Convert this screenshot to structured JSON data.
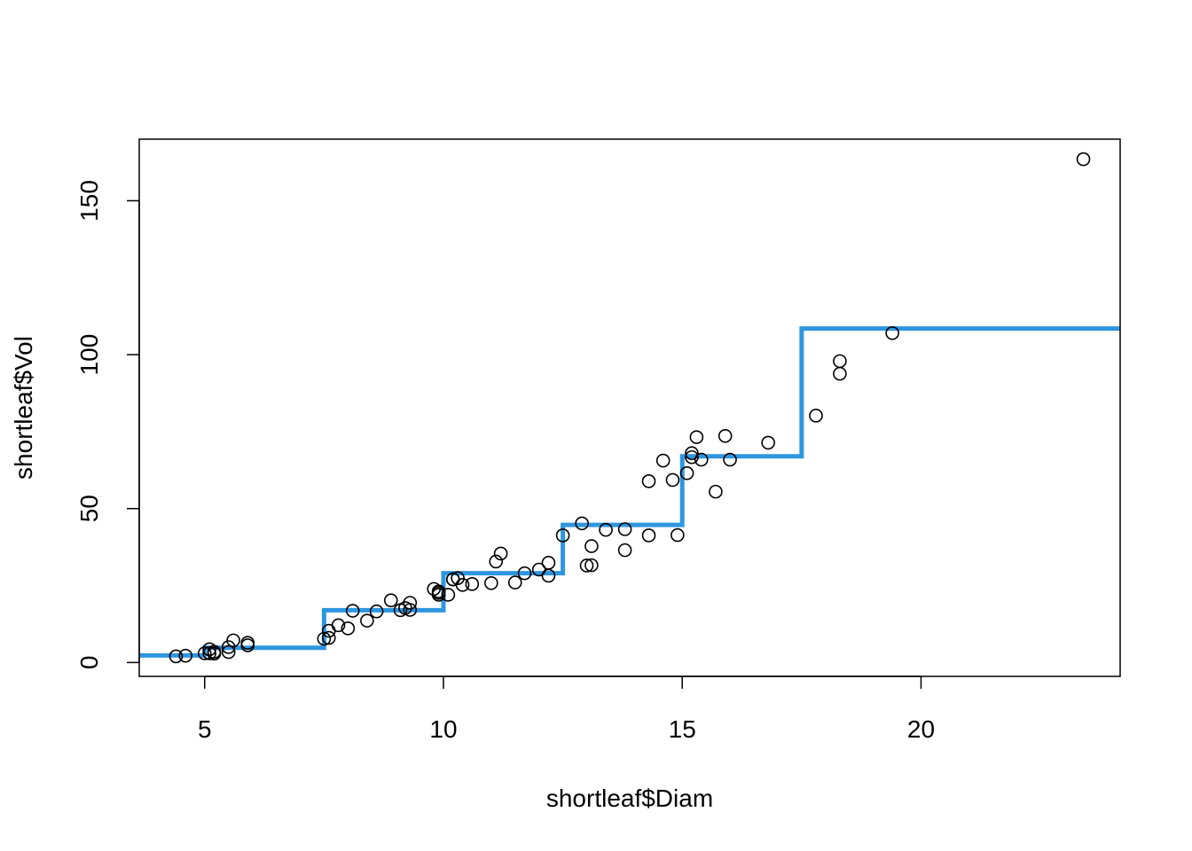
{
  "chart_data": {
    "type": "scatter",
    "title": "",
    "xlabel": "shortleaf$Diam",
    "ylabel": "shortleaf$Vol",
    "xlim": [
      3.63,
      24.17
    ],
    "ylim": [
      -4.5,
      170
    ],
    "x_ticks": [
      "5",
      "10",
      "15",
      "20"
    ],
    "y_ticks": [
      "0",
      "50",
      "100",
      "150"
    ],
    "grid": false,
    "legend": "none",
    "colors": {
      "points": "#000000",
      "step_line": "#2E96E0",
      "axes": "#000000"
    },
    "series": [
      {
        "type": "scatter",
        "points": [
          [
            4.4,
            2.0
          ],
          [
            4.6,
            2.2
          ],
          [
            5.0,
            3.0
          ],
          [
            5.1,
            4.3
          ],
          [
            5.1,
            3.0
          ],
          [
            5.2,
            2.9
          ],
          [
            5.2,
            3.5
          ],
          [
            5.5,
            3.4
          ],
          [
            5.5,
            5.0
          ],
          [
            5.6,
            7.2
          ],
          [
            5.9,
            6.4
          ],
          [
            5.9,
            5.6
          ],
          [
            7.5,
            7.7
          ],
          [
            7.6,
            10.3
          ],
          [
            7.6,
            8.0
          ],
          [
            7.8,
            12.1
          ],
          [
            8.0,
            11.1
          ],
          [
            8.1,
            16.8
          ],
          [
            8.4,
            13.6
          ],
          [
            8.6,
            16.6
          ],
          [
            8.9,
            20.2
          ],
          [
            9.1,
            17.0
          ],
          [
            9.2,
            17.7
          ],
          [
            9.3,
            19.4
          ],
          [
            9.3,
            17.1
          ],
          [
            9.8,
            23.9
          ],
          [
            9.9,
            22.0
          ],
          [
            9.9,
            23.1
          ],
          [
            9.9,
            22.6
          ],
          [
            10.1,
            22.0
          ],
          [
            10.2,
            27.0
          ],
          [
            10.2,
            27.0
          ],
          [
            10.3,
            27.4
          ],
          [
            10.4,
            25.2
          ],
          [
            10.6,
            25.5
          ],
          [
            11.0,
            25.8
          ],
          [
            11.1,
            32.8
          ],
          [
            11.2,
            35.4
          ],
          [
            11.5,
            26.0
          ],
          [
            11.7,
            29.0
          ],
          [
            12.0,
            30.2
          ],
          [
            12.2,
            28.2
          ],
          [
            12.2,
            32.4
          ],
          [
            12.5,
            41.3
          ],
          [
            12.9,
            45.2
          ],
          [
            13.0,
            31.5
          ],
          [
            13.1,
            37.8
          ],
          [
            13.1,
            31.6
          ],
          [
            13.4,
            43.1
          ],
          [
            13.8,
            36.5
          ],
          [
            13.8,
            43.3
          ],
          [
            14.3,
            41.3
          ],
          [
            14.3,
            58.9
          ],
          [
            14.6,
            65.6
          ],
          [
            14.8,
            59.3
          ],
          [
            14.9,
            41.4
          ],
          [
            15.1,
            61.5
          ],
          [
            15.2,
            66.7
          ],
          [
            15.2,
            68.0
          ],
          [
            15.3,
            73.2
          ],
          [
            15.4,
            65.9
          ],
          [
            15.7,
            55.5
          ],
          [
            15.9,
            73.6
          ],
          [
            16.0,
            65.9
          ],
          [
            16.8,
            71.4
          ],
          [
            17.8,
            80.2
          ],
          [
            18.3,
            93.8
          ],
          [
            18.3,
            97.9
          ],
          [
            19.4,
            107.0
          ],
          [
            23.4,
            163.5
          ]
        ]
      },
      {
        "type": "step",
        "steps": [
          {
            "from": 3.63,
            "to": 5.0,
            "value": 2.3
          },
          {
            "from": 5.0,
            "to": 7.5,
            "value": 4.8
          },
          {
            "from": 7.5,
            "to": 10.0,
            "value": 17.0
          },
          {
            "from": 10.0,
            "to": 12.5,
            "value": 29.0
          },
          {
            "from": 12.5,
            "to": 15.0,
            "value": 44.7
          },
          {
            "from": 15.0,
            "to": 17.5,
            "value": 67.0
          },
          {
            "from": 17.5,
            "to": 24.17,
            "value": 108.5
          }
        ]
      }
    ]
  }
}
